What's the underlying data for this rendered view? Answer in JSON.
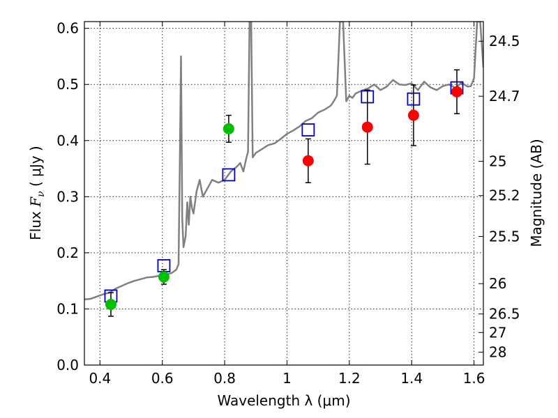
{
  "chart_data": {
    "type": "scatter",
    "title": "",
    "xlabel": "Wavelength  λ (μm)",
    "ylabel": "Flux  F_ν  ( μJy )",
    "ylabel_parts": {
      "prefix": "Flux  ",
      "symbol": "F",
      "subscript": "ν",
      "suffix": "  ( μJy )"
    },
    "y2label": "Magnitude (AB)",
    "xlim": [
      0.35,
      1.63
    ],
    "ylim": [
      0.0,
      0.612
    ],
    "xticks": [
      {
        "value": 0.4,
        "label": "0.4"
      },
      {
        "value": 0.6,
        "label": "0.6"
      },
      {
        "value": 0.8,
        "label": "0.8"
      },
      {
        "value": 1.0,
        "label": "1"
      },
      {
        "value": 1.2,
        "label": "1.2"
      },
      {
        "value": 1.4,
        "label": "1.4"
      },
      {
        "value": 1.6,
        "label": "1.6"
      }
    ],
    "yticks": [
      {
        "value": 0.0,
        "label": "0.0"
      },
      {
        "value": 0.1,
        "label": "0.1"
      },
      {
        "value": 0.2,
        "label": "0.2"
      },
      {
        "value": 0.3,
        "label": "0.3"
      },
      {
        "value": 0.4,
        "label": "0.4"
      },
      {
        "value": 0.5,
        "label": "0.5"
      },
      {
        "value": 0.6,
        "label": "0.6"
      }
    ],
    "magnitude_ticks": [
      {
        "label": "24.5",
        "flux": 0.577
      },
      {
        "label": "24.7",
        "flux": 0.479
      },
      {
        "label": "25",
        "flux": 0.363
      },
      {
        "label": "25.2",
        "flux": 0.302
      },
      {
        "label": "25.5",
        "flux": 0.229
      },
      {
        "label": "26",
        "flux": 0.145
      },
      {
        "label": "26.5",
        "flux": 0.091
      },
      {
        "label": "27",
        "flux": 0.058
      },
      {
        "label": "28",
        "flux": 0.023
      }
    ],
    "grid": true,
    "colors": {
      "model_spectrum": "#808080",
      "model_photometry": "#0000cc",
      "detections_optical": "#00c000",
      "detections_nir": "#ff0000",
      "errorbar": "#000000"
    },
    "series": [
      {
        "kind": "model_spectrum",
        "x": [
          0.35,
          0.37,
          0.39,
          0.41,
          0.43,
          0.45,
          0.47,
          0.49,
          0.51,
          0.53,
          0.55,
          0.57,
          0.59,
          0.61,
          0.63,
          0.645,
          0.652,
          0.656,
          0.66,
          0.664,
          0.668,
          0.675,
          0.68,
          0.685,
          0.69,
          0.695,
          0.7,
          0.71,
          0.72,
          0.73,
          0.74,
          0.75,
          0.76,
          0.78,
          0.8,
          0.82,
          0.84,
          0.85,
          0.86,
          0.87,
          0.875,
          0.88,
          0.885,
          0.89,
          0.9,
          0.92,
          0.94,
          0.96,
          0.98,
          1.0,
          1.02,
          1.04,
          1.06,
          1.08,
          1.1,
          1.12,
          1.14,
          1.15,
          1.16,
          1.17,
          1.18,
          1.19,
          1.2,
          1.21,
          1.22,
          1.24,
          1.26,
          1.28,
          1.3,
          1.32,
          1.34,
          1.36,
          1.38,
          1.4,
          1.42,
          1.44,
          1.46,
          1.48,
          1.5,
          1.52,
          1.54,
          1.56,
          1.58,
          1.59,
          1.6,
          1.61,
          1.62,
          1.63
        ],
        "y": [
          0.117,
          0.118,
          0.122,
          0.126,
          0.129,
          0.136,
          0.141,
          0.146,
          0.15,
          0.153,
          0.156,
          0.157,
          0.159,
          0.161,
          0.164,
          0.17,
          0.18,
          0.35,
          0.55,
          0.26,
          0.21,
          0.23,
          0.29,
          0.25,
          0.3,
          0.28,
          0.27,
          0.31,
          0.33,
          0.3,
          0.31,
          0.32,
          0.33,
          0.325,
          0.33,
          0.345,
          0.354,
          0.36,
          0.345,
          0.37,
          0.38,
          0.612,
          0.612,
          0.37,
          0.378,
          0.385,
          0.392,
          0.395,
          0.403,
          0.412,
          0.418,
          0.425,
          0.435,
          0.44,
          0.45,
          0.455,
          0.462,
          0.47,
          0.48,
          0.612,
          0.612,
          0.47,
          0.48,
          0.476,
          0.484,
          0.489,
          0.493,
          0.5,
          0.49,
          0.496,
          0.508,
          0.5,
          0.499,
          0.502,
          0.49,
          0.505,
          0.495,
          0.49,
          0.497,
          0.5,
          0.494,
          0.503,
          0.496,
          0.497,
          0.511,
          0.612,
          0.612,
          0.53
        ]
      },
      {
        "kind": "model_photometry",
        "marker": "open-square",
        "x": [
          0.435,
          0.605,
          0.813,
          1.068,
          1.258,
          1.406,
          1.545
        ],
        "y": [
          0.123,
          0.177,
          0.339,
          0.419,
          0.478,
          0.474,
          0.494
        ]
      },
      {
        "kind": "detections_optical",
        "marker": "filled-circle",
        "x": [
          0.435,
          0.605,
          0.813
        ],
        "y": [
          0.108,
          0.157,
          0.421
        ],
        "yerr": [
          0.021,
          0.013,
          0.024
        ]
      },
      {
        "kind": "detections_nir",
        "marker": "filled-circle",
        "x": [
          1.068,
          1.258,
          1.406,
          1.545
        ],
        "y": [
          0.364,
          0.424,
          0.445,
          0.487
        ],
        "yerr": [
          0.039,
          0.066,
          0.054,
          0.039
        ]
      }
    ]
  }
}
